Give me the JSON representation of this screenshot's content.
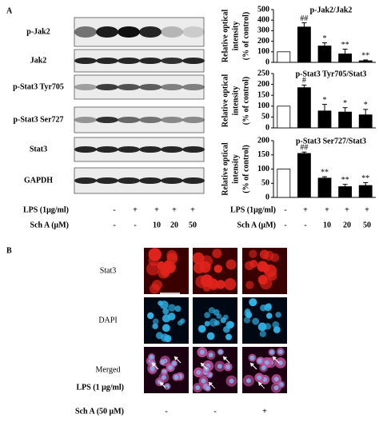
{
  "panel_a": {
    "label": "A",
    "blots": [
      "p-Jak2",
      "Jak2",
      "p-Stat3 Tyr705",
      "p-Stat3 Ser727",
      "Stat3",
      "GAPDH"
    ],
    "blot_treatment": [
      {
        "label": "LPS (1μg/ml)",
        "values": [
          "-",
          "+",
          "+",
          "+",
          "+"
        ]
      },
      {
        "label": "Sch A (μM)",
        "values": [
          "-",
          "-",
          "10",
          "20",
          "50"
        ]
      }
    ],
    "chart_treatment": [
      {
        "label": "LPS (1μg/ml)",
        "values": [
          "-",
          "+",
          "+",
          "+",
          "+"
        ]
      },
      {
        "label": "Sch A (μM)",
        "values": [
          "-",
          "-",
          "10",
          "20",
          "50"
        ]
      }
    ]
  },
  "chart_data": [
    {
      "type": "bar",
      "title": "p-Jak2/Jak2",
      "ylabel": [
        "Relative optical",
        "intensity",
        "(% of control)"
      ],
      "categories": [
        null,
        null,
        null,
        null,
        null
      ],
      "values": [
        100,
        335,
        155,
        80,
        15
      ],
      "errors": [
        0,
        40,
        30,
        45,
        8
      ],
      "colors": [
        "#ffffff",
        "#000000",
        "#000000",
        "#000000",
        "#000000"
      ],
      "annotations": [
        null,
        "##",
        "*",
        "**",
        "**"
      ],
      "ylim": [
        0,
        500
      ],
      "yticks": [
        0,
        100,
        200,
        300,
        400,
        500
      ]
    },
    {
      "type": "bar",
      "title": "p-Stat3 Tyr705/Stat3",
      "ylabel": [
        "Relative optical",
        "intensity",
        "(% of control)"
      ],
      "categories": [
        null,
        null,
        null,
        null,
        null
      ],
      "values": [
        100,
        185,
        78,
        73,
        60
      ],
      "errors": [
        0,
        12,
        30,
        20,
        25
      ],
      "colors": [
        "#ffffff",
        "#000000",
        "#000000",
        "#000000",
        "#000000"
      ],
      "annotations": [
        null,
        "#",
        "*",
        "*",
        "*"
      ],
      "ylim": [
        0,
        250
      ],
      "yticks": [
        0,
        50,
        100,
        150,
        200,
        250
      ]
    },
    {
      "type": "bar",
      "title": "p-Stat3 Ser727/Stat3",
      "ylabel": [
        "Relative optical",
        "intensity",
        "(% of control)"
      ],
      "categories": [
        null,
        null,
        null,
        null,
        null
      ],
      "values": [
        100,
        155,
        68,
        38,
        42
      ],
      "errors": [
        0,
        5,
        5,
        8,
        10
      ],
      "colors": [
        "#ffffff",
        "#000000",
        "#000000",
        "#000000",
        "#000000"
      ],
      "annotations": [
        null,
        "##",
        "**",
        "**",
        "**"
      ],
      "ylim": [
        0,
        200
      ],
      "yticks": [
        0,
        50,
        100,
        150,
        200
      ]
    }
  ],
  "panel_b": {
    "label": "B",
    "rows": [
      "Stat3",
      "DAPI",
      "Merged"
    ],
    "treatment": [
      {
        "label": "LPS (1 μg/ml)",
        "values": [
          "-",
          "+",
          "+"
        ]
      },
      {
        "label": "Sch A (50 μM)",
        "values": [
          "-",
          "-",
          "+"
        ]
      }
    ]
  }
}
